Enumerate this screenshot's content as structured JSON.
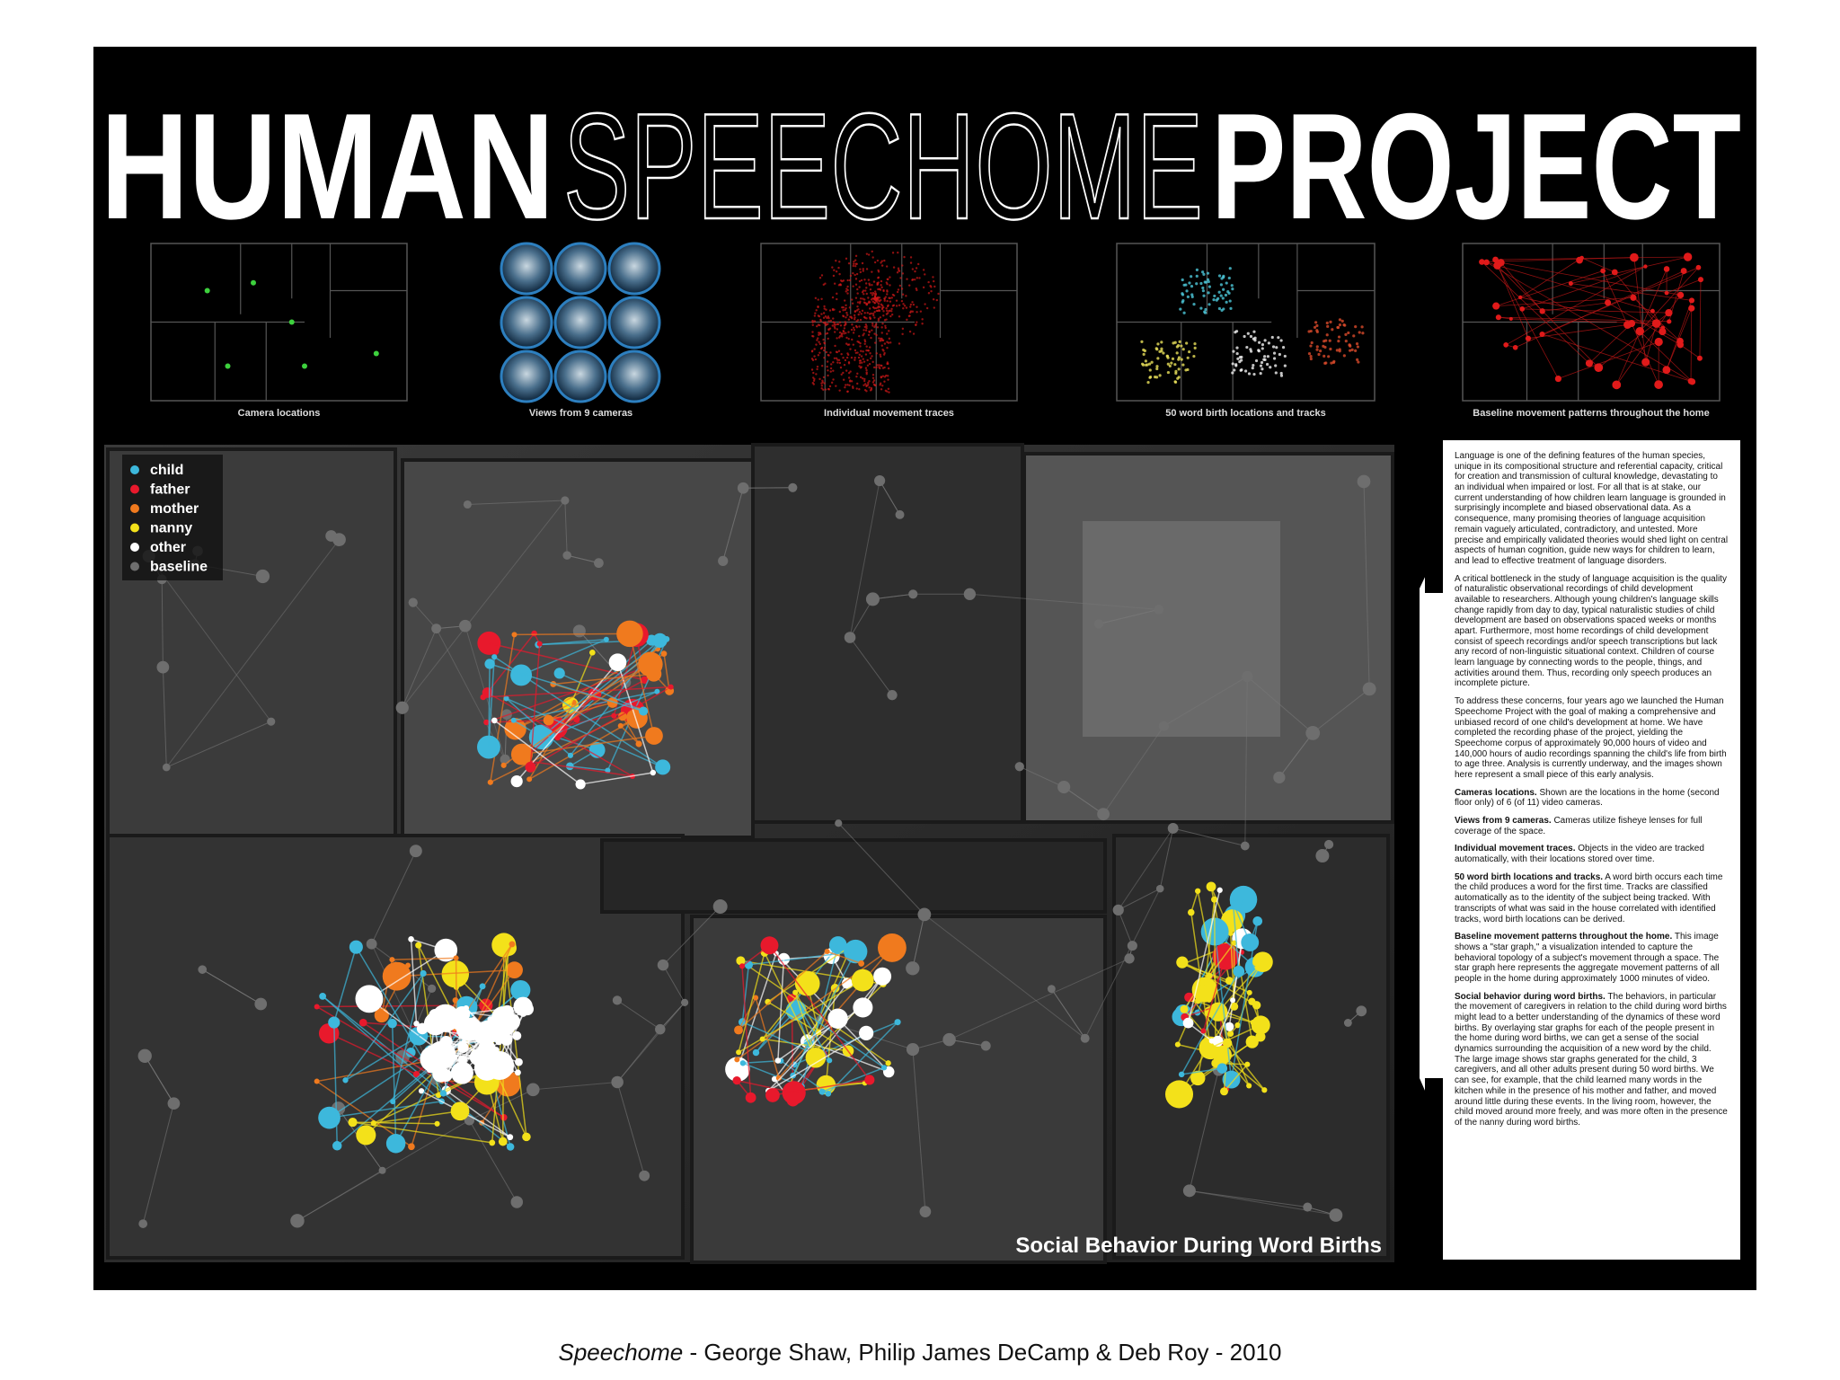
{
  "header": {
    "title": [
      "HUMAN",
      "SPEECHOME",
      "PROJECT"
    ]
  },
  "thumbnails": [
    {
      "caption": "Camera locations"
    },
    {
      "caption": "Views from 9 cameras"
    },
    {
      "caption": "Individual movement traces"
    },
    {
      "caption": "50 word birth locations and tracks"
    },
    {
      "caption": "Baseline movement patterns throughout the home"
    }
  ],
  "legend": [
    {
      "label": "child",
      "color": "#3db8dc"
    },
    {
      "label": "father",
      "color": "#e8192c"
    },
    {
      "label": "mother",
      "color": "#f07a1e"
    },
    {
      "label": "nanny",
      "color": "#f3e11a"
    },
    {
      "label": "other",
      "color": "#ffffff"
    },
    {
      "label": "baseline",
      "color": "#6e6e6e"
    }
  ],
  "map_label": "Social Behavior During Word Births",
  "description": {
    "paragraphs": [
      "Language is one of the defining features of the human species, unique in its compositional structure and referential capacity, critical for creation and transmission of cultural knowledge, devastating to an individual when impaired or lost. For all that is at stake, our current understanding of how children learn language is grounded in surprisingly incomplete and biased observational data. As a consequence, many promising theories of language acquisition remain vaguely articulated, contradictory, and untested. More precise and empirically validated theories would shed light on central aspects of human cognition, guide new ways for children to learn, and lead to effective treatment of language disorders.",
      "A critical bottleneck in the study of language acquisition is the quality of naturalistic observational recordings of child development available to researchers. Although young children's language skills change rapidly from day to day, typical naturalistic studies of child development are based on observations spaced weeks or months apart. Furthermore, most home recordings of child development consist of speech recordings and/or speech transcriptions but lack any record of non-linguistic situational context. Children of course learn language by connecting words to the people, things, and activities around them. Thus, recording only speech produces an incomplete picture.",
      "To address these concerns, four years ago we launched the Human Speechome Project with the goal of making a comprehensive and unbiased record of one child's development at home. We have completed the recording phase of the project, yielding the Speechome corpus of approximately 90,000 hours of video and 140,000 hours of audio recordings spanning the child's life from birth to age three. Analysis is currently underway, and the images shown here represent a small piece of this early analysis."
    ],
    "items": [
      {
        "heading": "Cameras locations.",
        "text": "Shown are the locations in the home (second floor only) of 6 (of 11) video cameras."
      },
      {
        "heading": "Views from 9 cameras.",
        "text": "Cameras utilize fisheye lenses for full coverage of the space."
      },
      {
        "heading": "Individual movement traces.",
        "text": "Objects in the video are tracked automatically, with their locations stored over time."
      },
      {
        "heading": "50 word birth locations and tracks.",
        "text": "A word birth occurs each time the child produces a word for the first time. Tracks are classified automatically as to the identity of the subject being tracked. With transcripts of what was said in the house correlated with identified tracks, word birth locations can be derived."
      },
      {
        "heading": "Baseline movement patterns throughout the home.",
        "text": "This image shows a \"star graph,\" a visualization intended to capture the behavioral topology of a subject's movement through a space. The star graph here represents the aggregate movement patterns of all people in the home during approximately 1000 minutes of video."
      },
      {
        "heading": "Social behavior during word births.",
        "text": "The behaviors, in particular the movement of caregivers in relation to the child during word births might lead to a better understanding of the dynamics of these word births. By overlaying star graphs for each of the people present in the home during word births, we can get a sense of the social dynamics surrounding the acquisition of a new word by the child. The large image shows star graphs generated for the child, 3 caregivers, and all other adults present during 50 word births. We can see, for example, that the child learned many words in the kitchen while in the presence of his mother and father, and moved around little during these events. In the living room, however, the child moved around more freely, and was more often in the presence of the nanny during word births."
      }
    ]
  },
  "caption": {
    "title": "Speechome",
    "credit": "- George Shaw, Philip James DeCamp & Deb Roy - 2010"
  }
}
